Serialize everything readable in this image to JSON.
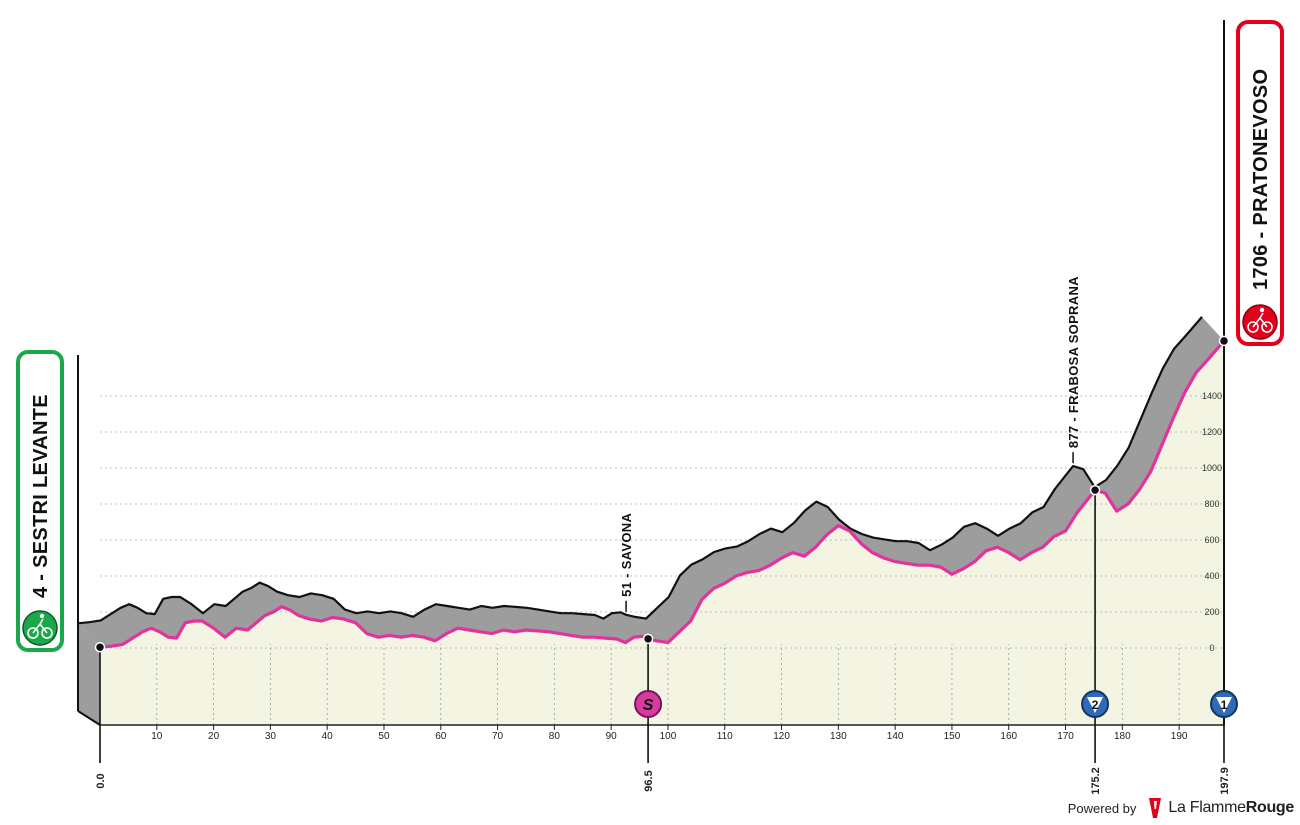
{
  "chart_data": {
    "type": "area",
    "start": {
      "altitude": "4",
      "name": "SESTRI LEVANTE",
      "label": "4 - SESTRI LEVANTE",
      "km": "0.0",
      "badge_color": "#1aa84a"
    },
    "finish": {
      "altitude": "1706",
      "name": "PRATONEVOSO",
      "label": "1706 - PRATONEVOSO",
      "km": "197.9",
      "badge_color": "#e3001b"
    },
    "passes": [
      {
        "label": "51 - SAVONA",
        "km": 96.5,
        "altitude": 51
      },
      {
        "label": "877 - FRABOSA SOPRANA",
        "km": 175.2,
        "altitude": 877
      }
    ],
    "key_points": [
      {
        "km_label": "0.0",
        "km": 0.0,
        "badge": "start"
      },
      {
        "km_label": "96.5",
        "km": 96.5,
        "badge": "S",
        "color": "#d63ca0"
      },
      {
        "km_label": "175.2",
        "km": 175.2,
        "badge": "2",
        "color": "#2f6bb5"
      },
      {
        "km_label": "197.9",
        "km": 197.9,
        "badge": "1",
        "color": "#2f6bb5"
      }
    ],
    "x_ticks": [
      10,
      20,
      30,
      40,
      50,
      60,
      70,
      80,
      90,
      100,
      110,
      120,
      130,
      140,
      150,
      160,
      170,
      180,
      190
    ],
    "y_ticks": [
      0,
      200,
      400,
      600,
      800,
      1000,
      1200,
      1400
    ],
    "xlim": [
      0,
      197.9
    ],
    "ylim": [
      -400,
      1706
    ],
    "x": [
      0,
      2,
      4,
      6,
      7.5,
      9,
      10.5,
      12,
      13.5,
      15,
      16.5,
      18,
      20,
      22,
      24,
      26,
      27.5,
      29,
      30.5,
      32,
      33.5,
      35,
      37,
      39,
      41,
      43,
      45,
      47,
      49,
      51,
      53,
      55,
      57,
      59,
      61,
      63,
      65,
      67,
      69,
      71,
      73,
      75,
      77,
      79,
      81,
      83,
      85,
      87,
      89,
      91,
      92.5,
      94,
      95.5,
      96.5,
      98,
      100,
      102,
      104,
      106,
      108,
      110,
      112,
      114,
      116,
      118,
      120,
      122,
      124,
      126,
      128,
      130,
      132,
      134,
      136,
      138,
      140,
      142,
      144,
      146,
      148,
      150,
      152,
      154,
      156,
      158,
      160,
      162,
      164,
      166,
      168,
      170,
      172,
      174,
      175.2,
      177,
      179,
      181,
      183,
      185,
      187,
      189,
      191,
      193,
      195,
      197.9
    ],
    "y": [
      4,
      10,
      20,
      60,
      90,
      110,
      90,
      60,
      55,
      140,
      150,
      150,
      110,
      60,
      110,
      100,
      140,
      180,
      200,
      230,
      210,
      180,
      160,
      150,
      170,
      160,
      140,
      80,
      60,
      70,
      60,
      70,
      60,
      40,
      80,
      110,
      100,
      90,
      80,
      100,
      90,
      100,
      95,
      90,
      80,
      70,
      60,
      60,
      55,
      50,
      30,
      60,
      65,
      51,
      40,
      30,
      90,
      150,
      270,
      330,
      360,
      400,
      420,
      430,
      460,
      500,
      530,
      510,
      560,
      630,
      680,
      650,
      580,
      530,
      500,
      480,
      470,
      460,
      460,
      450,
      410,
      440,
      480,
      540,
      560,
      530,
      490,
      530,
      560,
      620,
      650,
      750,
      830,
      877,
      860,
      760,
      800,
      880,
      980,
      1130,
      1280,
      1420,
      1530,
      1600,
      1706
    ]
  },
  "footer": {
    "powered": "Powered by",
    "brand_light": "La Flamme",
    "brand_bold": "Rouge"
  }
}
